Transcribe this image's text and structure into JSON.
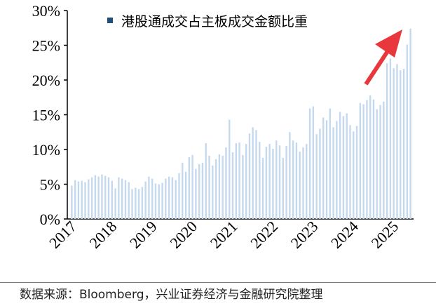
{
  "chart_data": {
    "type": "bar",
    "legend": "港股通成交占主板成交金额比重",
    "legend_position": "top-left",
    "legend_color": "#1f4e79",
    "bar_color": "#c5d9ee",
    "arrow_color": "#e8383d",
    "ylim": [
      0,
      30
    ],
    "y_ticks": [
      "0%",
      "5%",
      "10%",
      "15%",
      "20%",
      "25%",
      "30%"
    ],
    "x_tick_labels": [
      "2017",
      "2018",
      "2019",
      "2020",
      "2021",
      "2022",
      "2023",
      "2024",
      "2025"
    ],
    "grid": false,
    "start_period": "2017-01",
    "end_period": "2025-03",
    "values": [
      4.8,
      5.6,
      5.4,
      5.5,
      5.3,
      5.7,
      6.0,
      6.3,
      6.1,
      6.4,
      6.2,
      6.0,
      5.5,
      4.4,
      6.0,
      5.8,
      5.6,
      5.3,
      4.3,
      4.5,
      4.3,
      4.6,
      5.4,
      6.1,
      5.8,
      5.1,
      5.0,
      5.2,
      5.8,
      6.1,
      6.0,
      5.6,
      6.6,
      8.1,
      6.8,
      8.9,
      9.2,
      7.2,
      7.9,
      8.1,
      10.9,
      9.1,
      7.7,
      8.6,
      9.3,
      9.1,
      10.3,
      14.3,
      9.6,
      10.9,
      11.0,
      9.2,
      10.8,
      12.3,
      13.2,
      12.8,
      11.1,
      8.8,
      10.4,
      10.8,
      10.1,
      11.3,
      10.6,
      8.8,
      10.5,
      12.5,
      11.3,
      11.0,
      9.7,
      10.3,
      10.8,
      15.9,
      16.2,
      12.2,
      13.0,
      14.6,
      14.2,
      15.9,
      13.2,
      14.1,
      15.4,
      14.8,
      15.2,
      13.5,
      12.6,
      13.4,
      16.7,
      16.5,
      17.1,
      17.8,
      17.2,
      15.8,
      16.4,
      16.9,
      22.4,
      23.1,
      21.7,
      22.3,
      21.4,
      21.6,
      25.1,
      27.4
    ]
  },
  "source": "数据来源：Bloomberg，兴业证券经济与金融研究院整理"
}
